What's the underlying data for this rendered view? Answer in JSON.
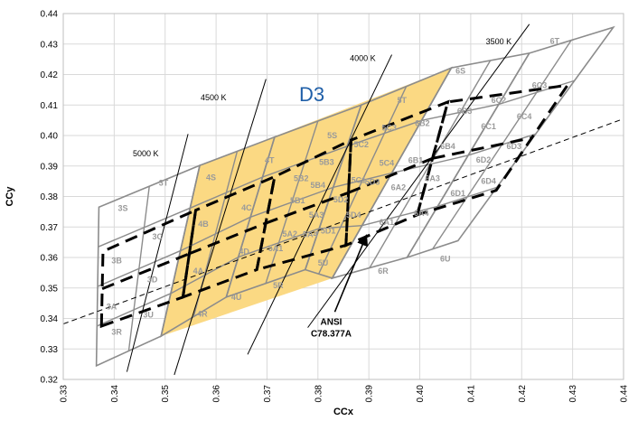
{
  "chart_data": {
    "type": "scatter",
    "ylabel": "CCy",
    "xlabel": "CCx",
    "xlim": [
      0.33,
      0.44
    ],
    "ylim": [
      0.32,
      0.44
    ],
    "x_ticks": [
      "0.33",
      "0.34",
      "0.35",
      "0.36",
      "0.37",
      "0.38",
      "0.39",
      "0.40",
      "0.41",
      "0.42",
      "0.43",
      "0.44"
    ],
    "y_ticks": [
      "0.32",
      "0.33",
      "0.34",
      "0.35",
      "0.36",
      "0.37",
      "0.38",
      "0.39",
      "0.40",
      "0.41",
      "0.42",
      "0.43",
      "0.44"
    ],
    "grid": true,
    "highlight_label": "D3",
    "highlight_color": "#fbd983",
    "highlight_polygon": [
      [
        0.3492,
        0.3342
      ],
      [
        0.3568,
        0.3902
      ],
      [
        0.4062,
        0.4222
      ],
      [
        0.3828,
        0.3532
      ]
    ],
    "cct_lines": [
      {
        "label": "5000 K",
        "start": [
          0.3425,
          0.3225
        ],
        "end": [
          0.3545,
          0.4005
        ]
      },
      {
        "label": "4500 K",
        "start": [
          0.3518,
          0.3215
        ],
        "end": [
          0.3698,
          0.4185
        ]
      },
      {
        "label": "4000 K",
        "start": [
          0.3662,
          0.3282
        ],
        "end": [
          0.3945,
          0.4265
        ]
      },
      {
        "label": "3500 K",
        "start": [
          0.378,
          0.337
        ],
        "end": [
          0.4215,
          0.4365
        ]
      }
    ],
    "cct_label_positions": [
      [
        0.3462,
        0.3932
      ],
      [
        0.3595,
        0.4115
      ],
      [
        0.3888,
        0.4245
      ],
      [
        0.4155,
        0.43
      ]
    ],
    "blackbody_locus": [
      [
        0.33,
        0.3382
      ],
      [
        0.44,
        0.4055
      ]
    ],
    "annotation": {
      "lines": [
        "ANSI",
        "C78.377A"
      ],
      "text_pos": [
        0.3826,
        0.338
      ],
      "arrow_to": [
        0.3894,
        0.3668
      ]
    },
    "bins": [
      {
        "label": "3R",
        "pos": [
          0.3405,
          0.3355
        ]
      },
      {
        "label": "3A",
        "pos": [
          0.3395,
          0.3438
        ]
      },
      {
        "label": "3U",
        "pos": [
          0.3467,
          0.3412
        ]
      },
      {
        "label": "3D",
        "pos": [
          0.3475,
          0.3527
        ]
      },
      {
        "label": "3B",
        "pos": [
          0.3405,
          0.359
        ]
      },
      {
        "label": "3C",
        "pos": [
          0.3485,
          0.3668
        ]
      },
      {
        "label": "3S",
        "pos": [
          0.3417,
          0.3762
        ]
      },
      {
        "label": "3T",
        "pos": [
          0.3497,
          0.3845
        ]
      },
      {
        "label": "4R",
        "pos": [
          0.3573,
          0.3415
        ]
      },
      {
        "label": "4U",
        "pos": [
          0.364,
          0.347
        ]
      },
      {
        "label": "4A",
        "pos": [
          0.3565,
          0.3555
        ]
      },
      {
        "label": "4D",
        "pos": [
          0.3655,
          0.362
        ]
      },
      {
        "label": "4B",
        "pos": [
          0.3575,
          0.371
        ]
      },
      {
        "label": "4C",
        "pos": [
          0.366,
          0.3763
        ]
      },
      {
        "label": "4S",
        "pos": [
          0.359,
          0.3862
        ]
      },
      {
        "label": "4T",
        "pos": [
          0.3705,
          0.3918
        ]
      },
      {
        "label": "5R",
        "pos": [
          0.3722,
          0.3508
        ]
      },
      {
        "label": "5U",
        "pos": [
          0.381,
          0.3582
        ]
      },
      {
        "label": "5A1",
        "pos": [
          0.3717,
          0.363
        ]
      },
      {
        "label": "5A2",
        "pos": [
          0.3745,
          0.3677
        ]
      },
      {
        "label": "5A4",
        "pos": [
          0.3785,
          0.3675
        ]
      },
      {
        "label": "5D1",
        "pos": [
          0.382,
          0.3687
        ]
      },
      {
        "label": "5D4",
        "pos": [
          0.387,
          0.374
        ]
      },
      {
        "label": "5A3",
        "pos": [
          0.3797,
          0.374
        ]
      },
      {
        "label": "5B1",
        "pos": [
          0.376,
          0.3787
        ]
      },
      {
        "label": "5D2",
        "pos": [
          0.3845,
          0.379
        ]
      },
      {
        "label": "5D3",
        "pos": [
          0.3907,
          0.3848
        ]
      },
      {
        "label": "5B4",
        "pos": [
          0.38,
          0.3837
        ]
      },
      {
        "label": "5C1",
        "pos": [
          0.388,
          0.3853
        ]
      },
      {
        "label": "5B2",
        "pos": [
          0.3767,
          0.386
        ]
      },
      {
        "label": "5B3",
        "pos": [
          0.3817,
          0.3912
        ]
      },
      {
        "label": "5C4",
        "pos": [
          0.3935,
          0.391
        ]
      },
      {
        "label": "5C2",
        "pos": [
          0.3885,
          0.397
        ]
      },
      {
        "label": "5C3",
        "pos": [
          0.394,
          0.4025
        ]
      },
      {
        "label": "5S",
        "pos": [
          0.3828,
          0.4
        ]
      },
      {
        "label": "5T",
        "pos": [
          0.3965,
          0.4115
        ]
      },
      {
        "label": "6R",
        "pos": [
          0.3928,
          0.3555
        ]
      },
      {
        "label": "6U",
        "pos": [
          0.405,
          0.3595
        ]
      },
      {
        "label": "6A1",
        "pos": [
          0.3935,
          0.3715
        ]
      },
      {
        "label": "6A4",
        "pos": [
          0.4003,
          0.3745
        ]
      },
      {
        "label": "6A2",
        "pos": [
          0.3958,
          0.383
        ]
      },
      {
        "label": "6D1",
        "pos": [
          0.4075,
          0.381
        ]
      },
      {
        "label": "6A3",
        "pos": [
          0.4025,
          0.386
        ]
      },
      {
        "label": "6B1",
        "pos": [
          0.3992,
          0.3918
        ]
      },
      {
        "label": "6D4",
        "pos": [
          0.4135,
          0.385
        ]
      },
      {
        "label": "6D2",
        "pos": [
          0.4125,
          0.392
        ]
      },
      {
        "label": "6B4",
        "pos": [
          0.4055,
          0.3965
        ]
      },
      {
        "label": "6D3",
        "pos": [
          0.4185,
          0.3965
        ]
      },
      {
        "label": "6C1",
        "pos": [
          0.4135,
          0.403
        ]
      },
      {
        "label": "6B2",
        "pos": [
          0.4005,
          0.404
        ]
      },
      {
        "label": "6B3",
        "pos": [
          0.4088,
          0.408
        ]
      },
      {
        "label": "6C4",
        "pos": [
          0.4205,
          0.4062
        ]
      },
      {
        "label": "6C2",
        "pos": [
          0.4155,
          0.4115
        ]
      },
      {
        "label": "6C3",
        "pos": [
          0.4235,
          0.4165
        ]
      },
      {
        "label": "6S",
        "pos": [
          0.408,
          0.4212
        ]
      },
      {
        "label": "6T",
        "pos": [
          0.4265,
          0.431
        ]
      }
    ]
  }
}
